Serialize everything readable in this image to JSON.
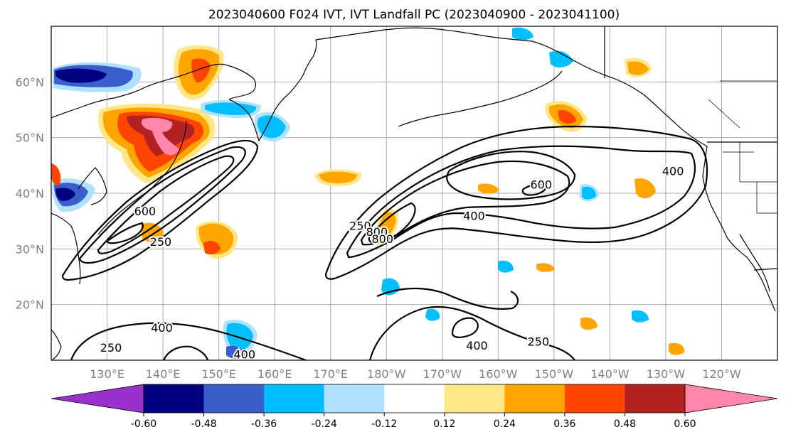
{
  "title": "2023040600 F024 IVT, IVT Landfall PC (2023040900 - 2023041100)",
  "map": {
    "projection": "PlateCarree",
    "lon_range_east": [
      120,
      250
    ],
    "lat_range": [
      10,
      70
    ],
    "lat_labels": [
      "20°N",
      "30°N",
      "40°N",
      "50°N",
      "60°N"
    ],
    "lon_labels": [
      "130°E",
      "140°E",
      "150°E",
      "160°E",
      "170°E",
      "180°W",
      "170°W",
      "160°W",
      "150°W",
      "140°W",
      "130°W",
      "120°W"
    ],
    "gridlines": true,
    "background": "#ffffff",
    "coast_color": "#000000",
    "gridline_color": "#aaaaaa"
  },
  "contours": {
    "variable": "IVT",
    "color": "#000000",
    "levels": [
      250,
      400,
      600,
      800
    ],
    "labels": [
      {
        "text": "600",
        "lon": 136.8,
        "lat": 36.8
      },
      {
        "text": "250",
        "lon": 139.6,
        "lat": 31.3
      },
      {
        "text": "250",
        "lon": 175.3,
        "lat": 34.2
      },
      {
        "text": "800",
        "lon": 178.3,
        "lat": 33.1
      },
      {
        "text": "800",
        "lon": 179.3,
        "lat": 31.8
      },
      {
        "text": "400",
        "lon": 195.7,
        "lat": 36.0
      },
      {
        "text": "600",
        "lon": 207.7,
        "lat": 41.6
      },
      {
        "text": "400",
        "lon": 231.3,
        "lat": 44.0
      },
      {
        "text": "400",
        "lon": 139.8,
        "lat": 15.9
      },
      {
        "text": "250",
        "lon": 130.7,
        "lat": 12.3
      },
      {
        "text": "400",
        "lon": 154.6,
        "lat": 11.1
      },
      {
        "text": "400",
        "lon": 196.2,
        "lat": 12.7
      },
      {
        "text": "250",
        "lon": 207.2,
        "lat": 13.4
      }
    ]
  },
  "colorbar": {
    "variable": "IVT Landfall PC",
    "ticks": [
      "-0.60",
      "-0.48",
      "-0.36",
      "-0.24",
      "-0.12",
      "0.12",
      "0.24",
      "0.36",
      "0.48",
      "0.60"
    ],
    "under_color": "#9932cc",
    "over_color": "#ff88aa",
    "colors": [
      "#000080",
      "#3a5fcd",
      "#00bfff",
      "#b0e2ff",
      "#ffffff",
      "#ffe787",
      "#ffa500",
      "#ff4500",
      "#b22222"
    ]
  },
  "shading_colors": {
    "dark_blue": "#000080",
    "royal_blue": "#3a5fcd",
    "sky_blue": "#00bfff",
    "light_blue": "#b0e2ff",
    "light_yellow": "#ffe787",
    "orange": "#ffa500",
    "orange_red": "#ff4500",
    "dark_red": "#b22222",
    "pink": "#ff88aa"
  }
}
